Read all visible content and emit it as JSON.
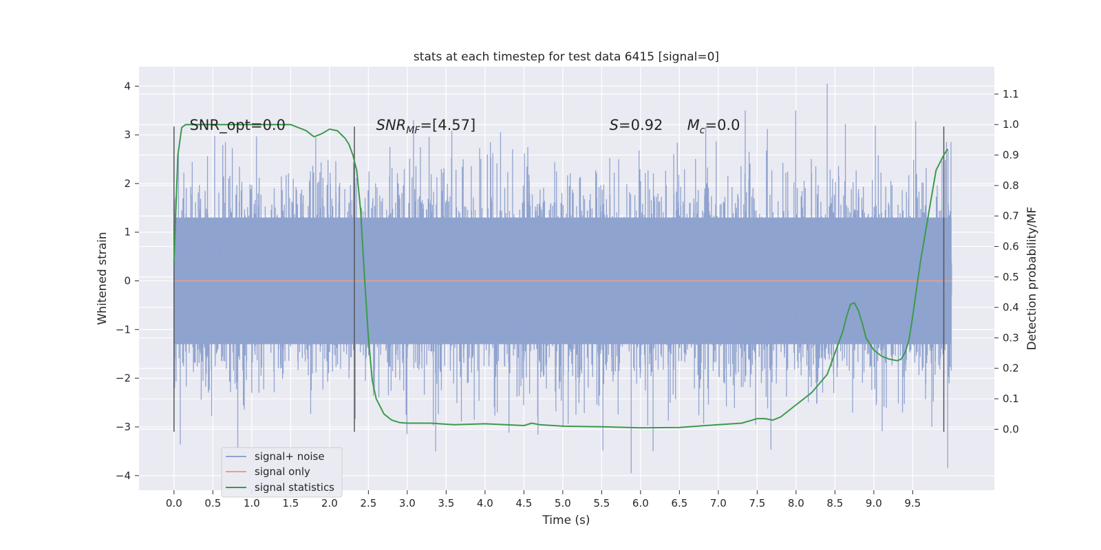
{
  "chart_data": {
    "type": "line",
    "title": "stats at each timestep for test data 6415 [signal=0]",
    "xlabel": "Time (s)",
    "ylabel_left": "Whitened strain",
    "ylabel_right": "Detection probability/MF",
    "xlim": [
      -0.45,
      10.55
    ],
    "ylim_left": [
      -4.3,
      4.4
    ],
    "ylim_right": [
      -0.2,
      1.19
    ],
    "grid": true,
    "legend_position": "lower-left",
    "x_ticks": [
      0.0,
      0.5,
      1.0,
      1.5,
      2.0,
      2.5,
      3.0,
      3.5,
      4.0,
      4.5,
      5.0,
      5.5,
      6.0,
      6.5,
      7.0,
      7.5,
      8.0,
      8.5,
      9.0,
      9.5
    ],
    "x_tick_labels": [
      "0.0",
      "0.5",
      "1.0",
      "1.5",
      "2.0",
      "2.5",
      "3.0",
      "3.5",
      "4.0",
      "4.5",
      "5.0",
      "5.5",
      "6.0",
      "6.5",
      "7.0",
      "7.5",
      "8.0",
      "8.5",
      "9.0",
      "9.5"
    ],
    "y_left_ticks": [
      4,
      3,
      2,
      1,
      0,
      -1,
      -2,
      -3,
      -4
    ],
    "y_left_tick_labels": [
      "4",
      "3",
      "2",
      "1",
      "0",
      "−1",
      "−2",
      "−3",
      "−4"
    ],
    "y_right_ticks": [
      1.1,
      1.0,
      0.9,
      0.8,
      0.7,
      0.6,
      0.5,
      0.4,
      0.3,
      0.2,
      0.1,
      0.0
    ],
    "y_right_tick_labels": [
      "1.1",
      "1.0",
      "0.9",
      "0.8",
      "0.7",
      "0.6",
      "0.5",
      "0.4",
      "0.3",
      "0.2",
      "0.1",
      "0.0"
    ],
    "annotations": [
      {
        "text": "SNR_opt=0.0",
        "x": 0.2,
        "y": 3.2
      },
      {
        "text": "SNR_MF=[4.57]",
        "x": 2.6,
        "y": 3.2
      },
      {
        "text": "S=0.92",
        "x": 5.6,
        "y": 3.2
      },
      {
        "text": "M_c=0.0",
        "x": 6.6,
        "y": 3.2
      }
    ],
    "vertical_markers": [
      {
        "x": 0.0,
        "y_range": [
          -3.1,
          3.17
        ]
      },
      {
        "x": 2.32,
        "y_range": [
          -3.1,
          3.17
        ]
      },
      {
        "x": 9.9,
        "y_range": [
          -3.1,
          3.17
        ]
      }
    ],
    "series": [
      {
        "name": "signal+ noise",
        "axis": "left",
        "color": "#8fa3cf",
        "x_range": [
          0.0,
          10.0
        ],
        "envelope_abs": 2.7,
        "outlier_abs": 3.5,
        "note_peaks": [
          [
            8.4,
            4.05
          ],
          [
            5.88,
            -3.95
          ],
          [
            9.95,
            -3.85
          ],
          [
            0.82,
            -3.5
          ]
        ]
      },
      {
        "name": "signal only",
        "axis": "left",
        "color": "#e8a08a",
        "x": [
          0.0,
          10.0
        ],
        "values": [
          0.0,
          0.0
        ]
      },
      {
        "name": "signal statistics",
        "axis": "right",
        "color": "#3a9a4a",
        "x": [
          0.0,
          0.05,
          0.1,
          0.15,
          0.2,
          0.3,
          0.5,
          1.0,
          1.5,
          1.7,
          1.8,
          1.9,
          2.0,
          2.1,
          2.2,
          2.25,
          2.3,
          2.35,
          2.4,
          2.45,
          2.5,
          2.55,
          2.6,
          2.7,
          2.8,
          2.9,
          3.0,
          3.3,
          3.6,
          4.0,
          4.5,
          4.6,
          4.7,
          5.0,
          5.5,
          6.0,
          6.5,
          7.0,
          7.3,
          7.5,
          7.6,
          7.7,
          7.8,
          8.0,
          8.2,
          8.3,
          8.4,
          8.5,
          8.6,
          8.65,
          8.7,
          8.75,
          8.8,
          8.85,
          8.9,
          9.0,
          9.1,
          9.2,
          9.3,
          9.35,
          9.4,
          9.45,
          9.5,
          9.6,
          9.7,
          9.8,
          9.9,
          9.95
        ],
        "values": [
          0.55,
          0.9,
          0.99,
          1.0,
          1.0,
          1.0,
          1.0,
          1.0,
          1.0,
          0.98,
          0.96,
          0.97,
          0.985,
          0.98,
          0.955,
          0.935,
          0.9,
          0.85,
          0.72,
          0.5,
          0.3,
          0.16,
          0.1,
          0.05,
          0.03,
          0.022,
          0.02,
          0.02,
          0.015,
          0.018,
          0.012,
          0.02,
          0.015,
          0.01,
          0.008,
          0.005,
          0.006,
          0.015,
          0.02,
          0.035,
          0.035,
          0.03,
          0.04,
          0.08,
          0.12,
          0.15,
          0.18,
          0.25,
          0.32,
          0.37,
          0.41,
          0.415,
          0.39,
          0.35,
          0.3,
          0.26,
          0.24,
          0.23,
          0.225,
          0.23,
          0.25,
          0.29,
          0.37,
          0.55,
          0.7,
          0.85,
          0.9,
          0.92
        ]
      }
    ]
  }
}
